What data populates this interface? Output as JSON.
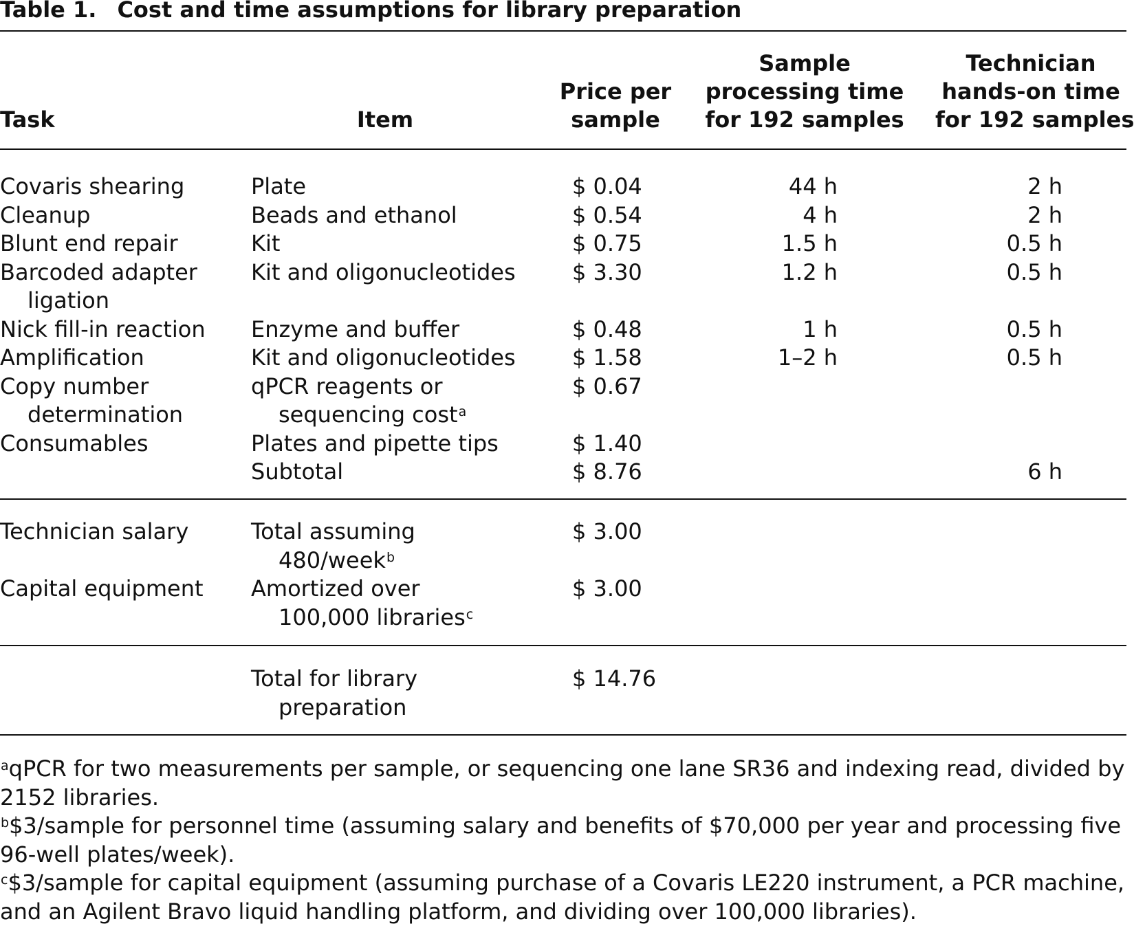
{
  "title": {
    "label": "Table 1.",
    "text": "Cost and time assumptions for library preparation"
  },
  "headers": {
    "task": "Task",
    "item": "Item",
    "price": [
      "Price per",
      "sample"
    ],
    "processing": [
      "Sample",
      "processing time",
      "for 192 samples"
    ],
    "technician": [
      "Technician",
      "hands-on time",
      "for 192 samples"
    ]
  },
  "section1": [
    {
      "task": [
        "Covaris shearing"
      ],
      "item": [
        "Plate"
      ],
      "price": "$ 0.04",
      "processing": "44 h",
      "technician": "2 h"
    },
    {
      "task": [
        "Cleanup"
      ],
      "item": [
        "Beads and ethanol"
      ],
      "price": "$ 0.54",
      "processing": "4 h",
      "technician": "2 h"
    },
    {
      "task": [
        "Blunt end repair"
      ],
      "item": [
        "Kit"
      ],
      "price": "$ 0.75",
      "processing": "1.5 h",
      "technician": "0.5 h"
    },
    {
      "task": [
        "Barcoded adapter",
        "ligation"
      ],
      "item": [
        "Kit and oligonucleotides"
      ],
      "price": "$ 3.30",
      "processing": "1.2 h",
      "technician": "0.5 h"
    },
    {
      "task": [
        "Nick fill-in reaction"
      ],
      "item": [
        "Enzyme and buffer"
      ],
      "price": "$ 0.48",
      "processing": "1 h",
      "technician": "0.5 h"
    },
    {
      "task": [
        "Amplification"
      ],
      "item": [
        "Kit and oligonucleotides"
      ],
      "price": "$ 1.58",
      "processing": "1–2 h",
      "technician": "0.5 h"
    },
    {
      "task": [
        "Copy number",
        "determination"
      ],
      "item": [
        "qPCR reagents or",
        "sequencing cost"
      ],
      "item_sup": "a",
      "price": "$ 0.67",
      "processing": "",
      "technician": ""
    },
    {
      "task": [
        "Consumables"
      ],
      "item": [
        "Plates and pipette tips"
      ],
      "price": "$ 1.40",
      "processing": "",
      "technician": ""
    },
    {
      "task": [
        ""
      ],
      "item": [
        "Subtotal"
      ],
      "price": "$ 8.76",
      "processing": "",
      "technician": "6 h"
    }
  ],
  "section2": [
    {
      "task": [
        "Technician salary"
      ],
      "item": [
        "Total assuming",
        "480/week"
      ],
      "item_sup": "b",
      "price": "$ 3.00"
    },
    {
      "task": [
        "Capital equipment"
      ],
      "item": [
        "Amortized over",
        "100,000 libraries"
      ],
      "item_sup": "c",
      "price": "$ 3.00"
    }
  ],
  "section3": [
    {
      "task": [
        ""
      ],
      "item": [
        "Total for library",
        "preparation"
      ],
      "price": "$ 14.76"
    }
  ],
  "footnotes": [
    {
      "mark": "a",
      "text": "qPCR for two measurements per sample, or sequencing one lane SR36 and indexing read, divided by 2152 libraries."
    },
    {
      "mark": "b",
      "text": "$3/sample for personnel time (assuming salary and benefits of $70,000 per year and processing five 96-well plates/week)."
    },
    {
      "mark": "c",
      "text": "$3/sample for capital equipment (assuming purchase of a Covaris LE220 instrument, a PCR machine, and an Agilent Bravo liquid handling platform, and dividing over 100,000 libraries)."
    }
  ]
}
